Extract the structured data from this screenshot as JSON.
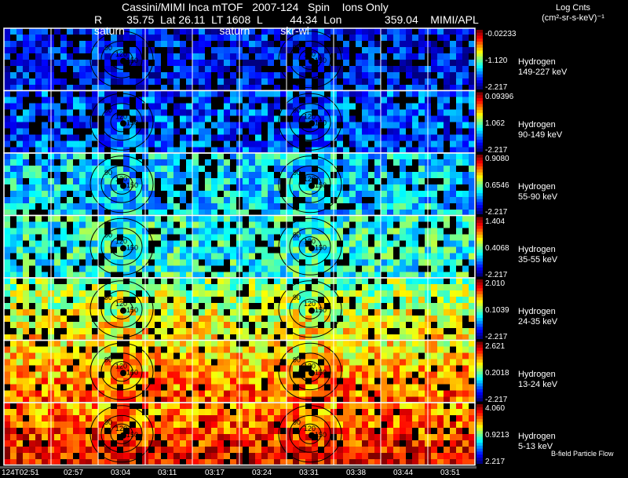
{
  "header": {
    "title": "Cassini/MIMI Inca mTOF   2007-124   Spin    Ions Only",
    "coords": "R        35.75  Lat 26.11  LT 1608  L         44.34  Lon              359.04    MIMI/APL",
    "overlay": "saturn                               saturn          skr-wl",
    "units_line1": "Log Cnts",
    "units_line2": "(cm²-sr-s-keV)⁻¹"
  },
  "panels": [
    {
      "species": "Hydrogen",
      "energy": "149-227 keV",
      "max": "-0.02233",
      "mid": "-1.120",
      "min": "-2.217",
      "level": 0.15
    },
    {
      "species": "Hydrogen",
      "energy": "90-149 keV",
      "max": "0.09396",
      "mid": "1.062",
      "min": "-2.217",
      "level": 0.22
    },
    {
      "species": "Hydrogen",
      "energy": "55-90 keV",
      "max": "0.9080",
      "mid": "0.6546",
      "min": "-2.217",
      "level": 0.38
    },
    {
      "species": "Hydrogen",
      "energy": "35-55 keV",
      "max": "1.404",
      "mid": "0.4068",
      "min": "-2.217",
      "level": 0.45
    },
    {
      "species": "Hydrogen",
      "energy": "24-35 keV",
      "max": "2.010",
      "mid": "0.1039",
      "min": "-2.217",
      "level": 0.55
    },
    {
      "species": "Hydrogen",
      "energy": "13-24 keV",
      "max": "2.621",
      "mid": "0.2018",
      "min": "-2.217",
      "level": 0.7
    },
    {
      "species": "Hydrogen",
      "energy": "5-13 keV",
      "max": "4.060",
      "mid": "0.9213",
      "min": "2.217",
      "level": 0.82
    }
  ],
  "contour_labels": [
    "90",
    "120",
    "150"
  ],
  "time_ticks": [
    "124T02:51",
    "02:57",
    "03:04",
    "03:11",
    "03:17",
    "03:24",
    "03:31",
    "03:38",
    "03:44",
    "03:51"
  ],
  "legend": "B-field Particle Flow"
}
